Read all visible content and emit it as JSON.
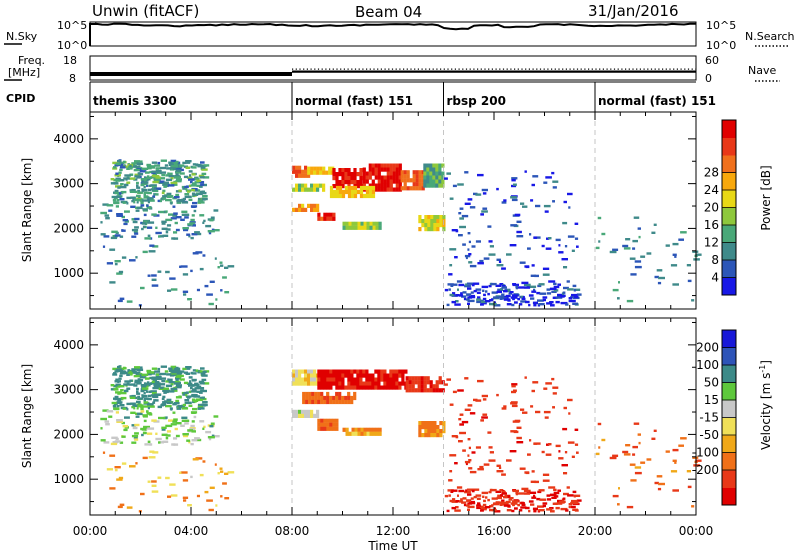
{
  "header": {
    "station": "Unwin (fitACF)",
    "beam": "Beam 04",
    "date": "31/Jan/2016"
  },
  "top_panels": {
    "sky": {
      "left_label": "N.Sky",
      "right_label": "N.Search",
      "y_ticks": [
        "10^5",
        "10^0"
      ],
      "right_ticks": [
        "10^5",
        "10^0"
      ]
    },
    "freq": {
      "left_label_1": "Freq.",
      "left_label_2": "[MHz]",
      "right_label": "Nave",
      "y_ticks": [
        "18",
        "8"
      ],
      "right_ticks": [
        "60",
        "0"
      ]
    },
    "cpid": {
      "label": "CPID"
    }
  },
  "cpid_segments": [
    {
      "label": "themis 3300",
      "start_hour": 0
    },
    {
      "label": "normal (fast) 151",
      "start_hour": 8
    },
    {
      "label": "rbsp 200",
      "start_hour": 14
    },
    {
      "label": "normal (fast) 151",
      "start_hour": 20
    }
  ],
  "x_axis": {
    "label": "Time UT",
    "ticks": [
      "00:00",
      "04:00",
      "08:00",
      "12:00",
      "16:00",
      "20:00",
      "00:00"
    ],
    "range_hours": [
      0,
      24
    ]
  },
  "power_panel": {
    "ylabel": "Slant Range [km]",
    "y_ticks": [
      "1000",
      "2000",
      "3000",
      "4000"
    ],
    "colorbar_label": "Power [dB]",
    "colorbar_ticks": [
      "4",
      "8",
      "12",
      "16",
      "20",
      "24",
      "28"
    ],
    "colorbar_colors": [
      "#1818e6",
      "#2c56b8",
      "#3f8a8a",
      "#49a878",
      "#8ec83c",
      "#e8d816",
      "#f8a80c",
      "#f0701c",
      "#e83818",
      "#e00000"
    ]
  },
  "velocity_panel": {
    "ylabel": "Slant Range [km]",
    "y_ticks": [
      "1000",
      "2000",
      "3000",
      "4000"
    ],
    "colorbar_label": "Velocity [m s^-1]",
    "colorbar_ticks": [
      "200",
      "100",
      "50",
      "15",
      "-15",
      "-50",
      "-100",
      "-200"
    ],
    "colorbar_colors": [
      "#1818d8",
      "#2e54b8",
      "#3c8a88",
      "#5ec83c",
      "#c8c8c8",
      "#f0e058",
      "#f0a818",
      "#f07018",
      "#e83818",
      "#e00000"
    ]
  },
  "chart_data": {
    "type": "heatmap",
    "x_unit": "hours UT",
    "y_unit": "km",
    "x_range": [
      0,
      24
    ],
    "y_range": [
      200,
      4600
    ],
    "frequency_mhz": [
      {
        "from_hour": 0,
        "to_hour": 8,
        "value": 10.5
      },
      {
        "from_hour": 8,
        "to_hour": 24,
        "value": 11.5
      }
    ],
    "power_regions": [
      {
        "x0": 8.0,
        "x1": 8.6,
        "y0": 3200,
        "y1": 3400,
        "level_db": 26
      },
      {
        "x0": 8.6,
        "x1": 9.6,
        "y0": 3250,
        "y1": 3380,
        "level_db": 20
      },
      {
        "x0": 9.6,
        "x1": 10.8,
        "y0": 2950,
        "y1": 3350,
        "level_db": 30
      },
      {
        "x0": 10.8,
        "x1": 12.3,
        "y0": 2900,
        "y1": 3450,
        "level_db": 30
      },
      {
        "x0": 12.3,
        "x1": 13.2,
        "y0": 2900,
        "y1": 3300,
        "level_db": 26
      },
      {
        "x0": 13.2,
        "x1": 14.0,
        "y0": 3000,
        "y1": 3450,
        "level_db": 12
      },
      {
        "x0": 9.5,
        "x1": 11.2,
        "y0": 2700,
        "y1": 2950,
        "level_db": 20
      },
      {
        "x0": 8.0,
        "x1": 9.2,
        "y0": 2850,
        "y1": 3000,
        "level_db": 16
      },
      {
        "x0": 8.0,
        "x1": 9.0,
        "y0": 2450,
        "y1": 2550,
        "level_db": 22
      },
      {
        "x0": 9.0,
        "x1": 9.7,
        "y0": 2200,
        "y1": 2350,
        "level_db": 28
      },
      {
        "x0": 10.0,
        "x1": 11.5,
        "y0": 2050,
        "y1": 2150,
        "level_db": 16
      },
      {
        "x0": 13.0,
        "x1": 14.0,
        "y0": 2000,
        "y1": 2300,
        "level_db": 18
      }
    ],
    "velocity_regions": [
      {
        "x0": 8.0,
        "x1": 9.0,
        "y0": 3150,
        "y1": 3450,
        "v": 0
      },
      {
        "x0": 9.0,
        "x1": 12.5,
        "y0": 3050,
        "y1": 3450,
        "v": -220
      },
      {
        "x0": 12.5,
        "x1": 14.0,
        "y0": 2950,
        "y1": 3300,
        "v": -180
      },
      {
        "x0": 8.4,
        "x1": 10.5,
        "y0": 2700,
        "y1": 2950,
        "v": -90
      },
      {
        "x0": 8.0,
        "x1": 9.0,
        "y0": 2450,
        "y1": 2550,
        "v": 30
      },
      {
        "x0": 9.0,
        "x1": 9.8,
        "y0": 2150,
        "y1": 2350,
        "v": -80
      },
      {
        "x0": 10.0,
        "x1": 11.5,
        "y0": 2050,
        "y1": 2150,
        "v": -40
      },
      {
        "x0": 13.0,
        "x1": 14.0,
        "y0": 2000,
        "y1": 2300,
        "v": -60
      }
    ],
    "scatter_zones": [
      {
        "x0": 0.8,
        "x1": 4.5,
        "y0": 2600,
        "y1": 3550,
        "power_db": 11,
        "velocity": 120,
        "count": 360
      },
      {
        "x0": 0.3,
        "x1": 5.0,
        "y0": 1800,
        "y1": 2600,
        "power_db": 9,
        "velocity": 60,
        "count": 130
      },
      {
        "x0": 0.5,
        "x1": 5.5,
        "y0": 300,
        "y1": 1700,
        "power_db": 9,
        "velocity": -40,
        "count": 55
      },
      {
        "x0": 14.0,
        "x1": 19.3,
        "y0": 300,
        "y1": 800,
        "power_db": 5,
        "velocity": -190,
        "count": 170
      },
      {
        "x0": 14.0,
        "x1": 19.3,
        "y0": 800,
        "y1": 3300,
        "power_db": 6,
        "velocity": -160,
        "count": 120
      },
      {
        "x0": 20.0,
        "x1": 24.0,
        "y0": 300,
        "y1": 2300,
        "power_db": 10,
        "velocity": -80,
        "count": 45
      }
    ]
  }
}
